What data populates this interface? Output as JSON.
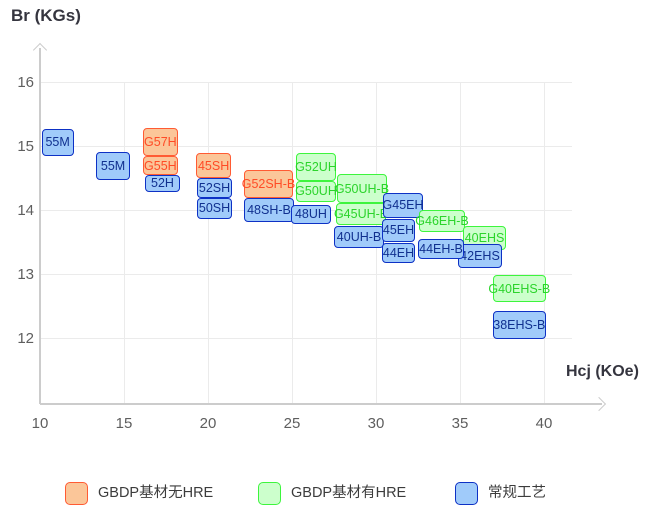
{
  "titles": {
    "y_axis": "Br (KGs)",
    "x_axis": "Hcj (KOe)"
  },
  "colors": {
    "orange": {
      "fill": "#fbc699",
      "border": "#ff5b33",
      "text": "#ff4b26"
    },
    "green": {
      "fill": "#ccffcc",
      "border": "#3df53d",
      "text": "#2bd42b"
    },
    "blue": {
      "fill": "#a0cbfa",
      "border": "#0d31c5",
      "text": "#10308f"
    },
    "axis": "#cccccc",
    "grid": "#ebebeb",
    "tick_text": "#5e5e5e",
    "title_text": "#35353f",
    "legend_text": "#3c3c3c"
  },
  "legend": {
    "items": [
      {
        "series": "orange",
        "label": "GBDP基材无HRE"
      },
      {
        "series": "green",
        "label": "GBDP基材有HRE"
      },
      {
        "series": "blue",
        "label": "常规工艺"
      }
    ]
  },
  "chart_data": {
    "type": "labeled-range-boxes",
    "title": "",
    "xlabel": "Hcj (KOe)",
    "ylabel": "Br (KGs)",
    "x_axis": {
      "ticks": [
        10,
        15,
        20,
        25,
        30,
        35,
        40
      ],
      "range": [
        10,
        43.5
      ]
    },
    "y_axis": {
      "ticks": [
        16,
        15,
        14,
        13,
        12
      ],
      "range": [
        11,
        16.5
      ]
    },
    "grid": true,
    "legend_position": "bottom",
    "series_legend": [
      "GBDP基材无HRE",
      "GBDP基材有HRE",
      "常规工艺"
    ],
    "grades": [
      {
        "label": "55M",
        "series": "blue",
        "hcj": [
          10.1,
          12.0
        ],
        "br": [
          14.84,
          15.27
        ]
      },
      {
        "label": "55M",
        "series": "blue",
        "hcj": [
          13.35,
          15.35
        ],
        "br": [
          14.47,
          14.91
        ]
      },
      {
        "label": "G57H",
        "series": "orange",
        "hcj": [
          16.13,
          18.2
        ],
        "br": [
          14.84,
          15.28
        ]
      },
      {
        "label": "G55H",
        "series": "orange",
        "hcj": [
          16.13,
          18.2
        ],
        "br": [
          14.55,
          14.84
        ]
      },
      {
        "label": "52H",
        "series": "blue",
        "hcj": [
          16.25,
          18.33
        ],
        "br": [
          14.28,
          14.55
        ]
      },
      {
        "label": "45SH",
        "series": "orange",
        "hcj": [
          19.3,
          21.37
        ],
        "br": [
          14.5,
          14.89
        ]
      },
      {
        "label": "52SH",
        "series": "blue",
        "hcj": [
          19.35,
          21.43
        ],
        "br": [
          14.19,
          14.5
        ]
      },
      {
        "label": "50SH",
        "series": "blue",
        "hcj": [
          19.35,
          21.43
        ],
        "br": [
          13.86,
          14.19
        ]
      },
      {
        "label": "G52SH-B",
        "series": "orange",
        "hcj": [
          22.14,
          25.06
        ],
        "br": [
          14.19,
          14.63
        ]
      },
      {
        "label": "48SH-B",
        "series": "blue",
        "hcj": [
          22.14,
          25.12
        ],
        "br": [
          13.81,
          14.19
        ]
      },
      {
        "label": "48UH",
        "series": "blue",
        "hcj": [
          24.94,
          27.32
        ],
        "br": [
          13.78,
          14.08
        ]
      },
      {
        "label": "G52UH",
        "series": "green",
        "hcj": [
          25.24,
          27.62
        ],
        "br": [
          14.45,
          14.89
        ]
      },
      {
        "label": "G50UH",
        "series": "green",
        "hcj": [
          25.24,
          27.62
        ],
        "br": [
          14.13,
          14.45
        ]
      },
      {
        "label": "G50UH-B",
        "series": "green",
        "hcj": [
          27.68,
          30.65
        ],
        "br": [
          14.11,
          14.56
        ]
      },
      {
        "label": "G45UH-B",
        "series": "green",
        "hcj": [
          27.62,
          30.6
        ],
        "br": [
          13.77,
          14.11
        ]
      },
      {
        "label": "40UH-B",
        "series": "blue",
        "hcj": [
          27.5,
          30.48
        ],
        "br": [
          13.41,
          13.75
        ]
      },
      {
        "label": "G45EH",
        "series": "blue",
        "hcj": [
          30.42,
          32.8
        ],
        "br": [
          13.88,
          14.27
        ]
      },
      {
        "label": "45EH",
        "series": "blue",
        "hcj": [
          30.36,
          32.32
        ],
        "br": [
          13.5,
          13.86
        ]
      },
      {
        "label": "44EH",
        "series": "blue",
        "hcj": [
          30.36,
          32.32
        ],
        "br": [
          13.17,
          13.48
        ]
      },
      {
        "label": "G46EH-B",
        "series": "green",
        "hcj": [
          32.56,
          35.3
        ],
        "br": [
          13.66,
          14.0
        ]
      },
      {
        "label": "40EHS",
        "series": "green",
        "hcj": [
          35.18,
          37.74
        ],
        "br": [
          13.38,
          13.75
        ]
      },
      {
        "label": "42EHS",
        "series": "blue",
        "hcj": [
          34.88,
          37.5
        ],
        "br": [
          13.09,
          13.47
        ]
      },
      {
        "label": "44EH-B",
        "series": "blue",
        "hcj": [
          32.5,
          35.24
        ],
        "br": [
          13.23,
          13.55
        ]
      },
      {
        "label": "G40EHS-B",
        "series": "green",
        "hcj": [
          36.96,
          40.1
        ],
        "br": [
          12.56,
          12.98
        ]
      },
      {
        "label": "38EHS-B",
        "series": "blue",
        "hcj": [
          36.96,
          40.1
        ],
        "br": [
          11.98,
          12.42
        ]
      }
    ]
  }
}
